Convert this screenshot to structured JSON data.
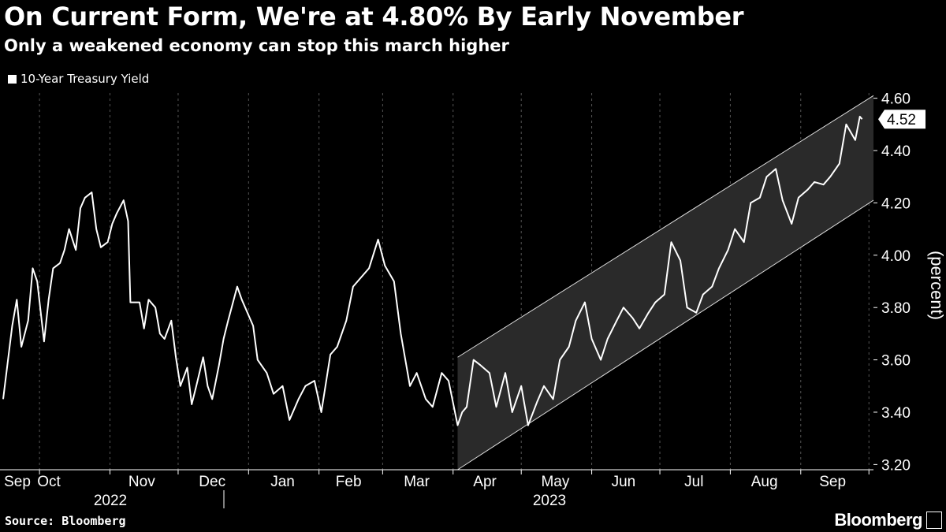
{
  "title": "On Current Form, We're at 4.80% By Early November",
  "subtitle": "Only a weakened economy can stop this march higher",
  "source": "Source: Bloomberg",
  "brand": "Bloomberg",
  "colors": {
    "background": "#000000",
    "line": "#ffffff",
    "channel_fill": "#2a2a2a",
    "grid": "#555555"
  },
  "chart_data": {
    "type": "line",
    "title": "On Current Form, We're at 4.80% By Early November",
    "subtitle": "Only a weakened economy can stop this march higher",
    "ylabel": "(percent)",
    "ylim": [
      3.18,
      4.62
    ],
    "y_ticks": [
      "3.20",
      "3.40",
      "3.60",
      "3.80",
      "4.00",
      "4.20",
      "4.40",
      "4.60"
    ],
    "x_ticks": [
      "Sep",
      "Oct",
      "Nov",
      "Dec",
      "Jan",
      "Feb",
      "Mar",
      "Apr",
      "May",
      "Jun",
      "Jul",
      "Aug",
      "Sep"
    ],
    "x_year_labels": [
      "2022",
      "2023"
    ],
    "grid": "vertical dashed",
    "legend_position": "top-left",
    "last_value_label": "4.52",
    "series": [
      {
        "name": "10-Year Treasury Yield",
        "x": [
          "2022-09-15",
          "2022-09-19",
          "2022-09-21",
          "2022-09-23",
          "2022-09-26",
          "2022-09-28",
          "2022-09-30",
          "2022-10-03",
          "2022-10-05",
          "2022-10-07",
          "2022-10-10",
          "2022-10-12",
          "2022-10-14",
          "2022-10-17",
          "2022-10-19",
          "2022-10-21",
          "2022-10-24",
          "2022-10-26",
          "2022-10-28",
          "2022-10-31",
          "2022-11-02",
          "2022-11-04",
          "2022-11-07",
          "2022-11-09",
          "2022-11-10",
          "2022-11-14",
          "2022-11-16",
          "2022-11-18",
          "2022-11-21",
          "2022-11-23",
          "2022-11-25",
          "2022-11-28",
          "2022-11-30",
          "2022-12-02",
          "2022-12-05",
          "2022-12-07",
          "2022-12-09",
          "2022-12-12",
          "2022-12-14",
          "2022-12-16",
          "2022-12-19",
          "2022-12-21",
          "2022-12-23",
          "2022-12-27",
          "2022-12-29",
          "2023-01-03",
          "2023-01-05",
          "2023-01-09",
          "2023-01-12",
          "2023-01-16",
          "2023-01-19",
          "2023-01-23",
          "2023-01-26",
          "2023-01-30",
          "2023-02-02",
          "2023-02-06",
          "2023-02-09",
          "2023-02-13",
          "2023-02-16",
          "2023-02-20",
          "2023-02-23",
          "2023-02-27",
          "2023-03-02",
          "2023-03-06",
          "2023-03-09",
          "2023-03-13",
          "2023-03-16",
          "2023-03-20",
          "2023-03-23",
          "2023-03-27",
          "2023-03-30",
          "2023-04-03",
          "2023-04-05",
          "2023-04-07",
          "2023-04-10",
          "2023-04-13",
          "2023-04-17",
          "2023-04-20",
          "2023-04-24",
          "2023-04-27",
          "2023-05-01",
          "2023-05-04",
          "2023-05-08",
          "2023-05-11",
          "2023-05-15",
          "2023-05-18",
          "2023-05-22",
          "2023-05-25",
          "2023-05-29",
          "2023-06-01",
          "2023-06-05",
          "2023-06-08",
          "2023-06-12",
          "2023-06-15",
          "2023-06-19",
          "2023-06-22",
          "2023-06-26",
          "2023-06-29",
          "2023-07-03",
          "2023-07-06",
          "2023-07-10",
          "2023-07-13",
          "2023-07-17",
          "2023-07-20",
          "2023-07-24",
          "2023-07-27",
          "2023-07-31",
          "2023-08-03",
          "2023-08-07",
          "2023-08-10",
          "2023-08-14",
          "2023-08-17",
          "2023-08-21",
          "2023-08-24",
          "2023-08-28",
          "2023-08-31",
          "2023-09-04",
          "2023-09-07",
          "2023-09-11",
          "2023-09-14",
          "2023-09-18",
          "2023-09-21",
          "2023-09-25",
          "2023-09-27",
          "2023-09-28"
        ],
        "values": [
          3.45,
          3.73,
          3.83,
          3.65,
          3.75,
          3.95,
          3.9,
          3.67,
          3.83,
          3.95,
          3.97,
          4.02,
          4.1,
          4.02,
          4.18,
          4.22,
          4.24,
          4.1,
          4.03,
          4.05,
          4.12,
          4.16,
          4.21,
          4.13,
          3.82,
          3.82,
          3.72,
          3.83,
          3.8,
          3.7,
          3.68,
          3.75,
          3.61,
          3.5,
          3.57,
          3.43,
          3.5,
          3.61,
          3.5,
          3.45,
          3.58,
          3.68,
          3.75,
          3.88,
          3.83,
          3.73,
          3.6,
          3.55,
          3.47,
          3.5,
          3.37,
          3.45,
          3.5,
          3.52,
          3.4,
          3.62,
          3.65,
          3.75,
          3.88,
          3.92,
          3.95,
          4.06,
          3.96,
          3.9,
          3.7,
          3.5,
          3.55,
          3.45,
          3.42,
          3.55,
          3.52,
          3.35,
          3.4,
          3.42,
          3.6,
          3.58,
          3.55,
          3.42,
          3.55,
          3.4,
          3.5,
          3.35,
          3.44,
          3.5,
          3.45,
          3.6,
          3.65,
          3.75,
          3.82,
          3.68,
          3.6,
          3.68,
          3.75,
          3.8,
          3.76,
          3.72,
          3.78,
          3.82,
          3.85,
          4.05,
          3.98,
          3.8,
          3.78,
          3.85,
          3.88,
          3.95,
          4.02,
          4.1,
          4.05,
          4.2,
          4.22,
          4.3,
          4.33,
          4.21,
          4.12,
          4.22,
          4.25,
          4.28,
          4.27,
          4.3,
          4.35,
          4.5,
          4.44,
          4.53,
          4.52
        ]
      }
    ],
    "channel": {
      "upper_line": [
        {
          "x": "2023-04-03",
          "y": 3.61
        },
        {
          "x": "2023-10-03",
          "y": 4.61
        }
      ],
      "lower_line": [
        {
          "x": "2023-04-03",
          "y": 3.18
        },
        {
          "x": "2023-10-03",
          "y": 4.21
        }
      ]
    }
  }
}
